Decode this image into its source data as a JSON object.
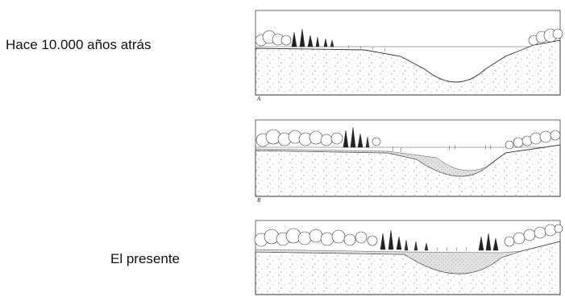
{
  "captions": {
    "top": "Hace 10.000 años atrás",
    "bottom": "El presente"
  },
  "panels": [
    {
      "letter": "A"
    },
    {
      "letter": "B"
    },
    {
      "letter": "C"
    }
  ]
}
